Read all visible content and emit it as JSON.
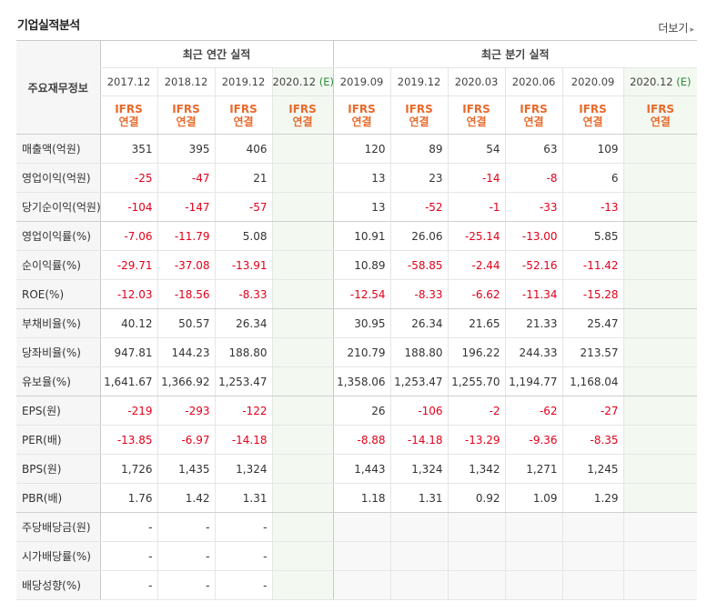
{
  "title": "기업실적분석",
  "more_label": "더보기",
  "row_header": "주요재무정보",
  "annual_group": "최근 연간 실적",
  "quarter_group": "최근 분기 실적",
  "periods": [
    {
      "label": "2017.12",
      "est": ""
    },
    {
      "label": "2018.12",
      "est": ""
    },
    {
      "label": "2019.12",
      "est": ""
    },
    {
      "label": "2020.12",
      "est": "(E)"
    },
    {
      "label": "2019.09",
      "est": ""
    },
    {
      "label": "2019.12",
      "est": ""
    },
    {
      "label": "2020.03",
      "est": ""
    },
    {
      "label": "2020.06",
      "est": ""
    },
    {
      "label": "2020.09",
      "est": ""
    },
    {
      "label": "2020.12",
      "est": "(E)"
    }
  ],
  "basis_top": "IFRS",
  "basis_bottom": "연결",
  "rows": [
    {
      "label": "매출액(억원)",
      "values": [
        "351",
        "395",
        "406",
        "",
        "120",
        "89",
        "54",
        "63",
        "109",
        ""
      ]
    },
    {
      "label": "영업이익(억원)",
      "values": [
        "-25",
        "-47",
        "21",
        "",
        "13",
        "23",
        "-14",
        "-8",
        "6",
        ""
      ]
    },
    {
      "label": "당기순이익(억원)",
      "values": [
        "-104",
        "-147",
        "-57",
        "",
        "13",
        "-52",
        "-1",
        "-33",
        "-13",
        ""
      ]
    },
    {
      "label": "영업이익률(%)",
      "values": [
        "-7.06",
        "-11.79",
        "5.08",
        "",
        "10.91",
        "26.06",
        "-25.14",
        "-13.00",
        "5.85",
        ""
      ]
    },
    {
      "label": "순이익률(%)",
      "values": [
        "-29.71",
        "-37.08",
        "-13.91",
        "",
        "10.89",
        "-58.85",
        "-2.44",
        "-52.16",
        "-11.42",
        ""
      ]
    },
    {
      "label": "ROE(%)",
      "values": [
        "-12.03",
        "-18.56",
        "-8.33",
        "",
        "-12.54",
        "-8.33",
        "-6.62",
        "-11.34",
        "-15.28",
        ""
      ]
    },
    {
      "label": "부채비율(%)",
      "values": [
        "40.12",
        "50.57",
        "26.34",
        "",
        "30.95",
        "26.34",
        "21.65",
        "21.33",
        "25.47",
        ""
      ]
    },
    {
      "label": "당좌비율(%)",
      "values": [
        "947.81",
        "144.23",
        "188.80",
        "",
        "210.79",
        "188.80",
        "196.22",
        "244.33",
        "213.57",
        ""
      ]
    },
    {
      "label": "유보율(%)",
      "values": [
        "1,641.67",
        "1,366.92",
        "1,253.47",
        "",
        "1,358.06",
        "1,253.47",
        "1,255.70",
        "1,194.77",
        "1,168.04",
        ""
      ]
    },
    {
      "label": "EPS(원)",
      "values": [
        "-219",
        "-293",
        "-122",
        "",
        "26",
        "-106",
        "-2",
        "-62",
        "-27",
        ""
      ]
    },
    {
      "label": "PER(배)",
      "values": [
        "-13.85",
        "-6.97",
        "-14.18",
        "",
        "-8.88",
        "-14.18",
        "-13.29",
        "-9.36",
        "-8.35",
        ""
      ]
    },
    {
      "label": "BPS(원)",
      "values": [
        "1,726",
        "1,435",
        "1,324",
        "",
        "1,443",
        "1,324",
        "1,342",
        "1,271",
        "1,245",
        ""
      ]
    },
    {
      "label": "PBR(배)",
      "values": [
        "1.76",
        "1.42",
        "1.31",
        "",
        "1.18",
        "1.31",
        "0.92",
        "1.09",
        "1.29",
        ""
      ]
    },
    {
      "label": "주당배당금(원)",
      "values": [
        "-",
        "-",
        "-",
        "",
        "",
        "",
        "",
        "",
        "",
        ""
      ]
    },
    {
      "label": "시가배당률(%)",
      "values": [
        "-",
        "-",
        "-",
        "",
        "",
        "",
        "",
        "",
        "",
        ""
      ]
    },
    {
      "label": "배당성향(%)",
      "values": [
        "-",
        "-",
        "-",
        "",
        "",
        "",
        "",
        "",
        "",
        ""
      ]
    }
  ]
}
